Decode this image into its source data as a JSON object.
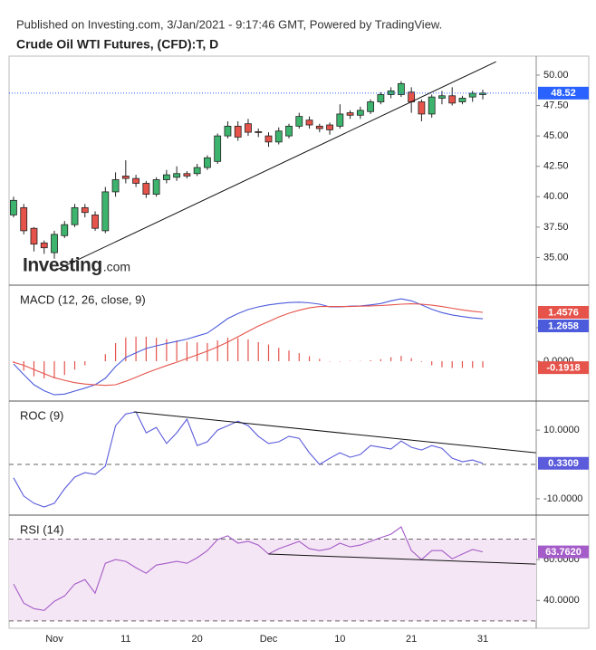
{
  "header": {
    "published": "Published on Investing.com, 3/Jan/2021 - 9:17:46 GMT, Powered by TradingView.",
    "watermark": "Investing",
    "watermark_suffix": ".com"
  },
  "chart_data": [
    {
      "type": "candlestick",
      "title": "Crude Oil WTI Futures, (CFD):T, D",
      "categories": [
        null,
        null,
        null,
        null,
        "Nov",
        null,
        null,
        null,
        null,
        null,
        null,
        "11",
        null,
        null,
        null,
        null,
        null,
        null,
        "20",
        null,
        null,
        null,
        null,
        null,
        null,
        "Dec",
        null,
        null,
        null,
        null,
        null,
        null,
        "10",
        null,
        null,
        null,
        null,
        null,
        null,
        "21",
        null,
        null,
        null,
        null,
        null,
        null,
        "31"
      ],
      "open": [
        38.5,
        39.1,
        37.4,
        36.2,
        35.4,
        36.8,
        37.7,
        39.1,
        38.5,
        37.2,
        40.4,
        41.7,
        41.5,
        41.1,
        40.2,
        41.4,
        41.6,
        41.9,
        41.9,
        42.4,
        42.9,
        45.0,
        45.8,
        46.0,
        45.35,
        45.0,
        44.5,
        45.0,
        45.8,
        46.3,
        45.8,
        45.9,
        45.8,
        46.9,
        46.7,
        47.0,
        47.8,
        48.4,
        48.4,
        48.6,
        47.8,
        46.8,
        48.1,
        48.3,
        47.8,
        48.2,
        48.4
      ],
      "high": [
        40.0,
        39.4,
        37.5,
        36.4,
        37.2,
        38.0,
        39.4,
        39.4,
        38.8,
        40.8,
        42.0,
        43.0,
        41.8,
        41.3,
        41.6,
        42.2,
        42.5,
        42.1,
        42.7,
        43.4,
        45.2,
        46.2,
        46.2,
        46.4,
        45.6,
        45.3,
        45.7,
        46.0,
        46.9,
        46.6,
        46.0,
        46.1,
        47.6,
        47.1,
        47.4,
        48.0,
        48.6,
        49.0,
        49.5,
        49.0,
        48.0,
        48.4,
        48.7,
        49.0,
        48.3,
        48.7,
        48.8
      ],
      "low": [
        38.3,
        36.9,
        35.5,
        35.3,
        34.9,
        36.6,
        37.5,
        38.3,
        37.2,
        37.0,
        40.0,
        41.1,
        40.8,
        39.9,
        40.0,
        41.1,
        41.3,
        41.5,
        41.7,
        42.2,
        42.7,
        44.8,
        44.6,
        45.0,
        44.9,
        44.1,
        44.3,
        44.8,
        45.6,
        45.6,
        45.3,
        45.1,
        45.6,
        46.4,
        46.4,
        46.8,
        47.6,
        48.1,
        48.2,
        46.9,
        46.2,
        46.5,
        47.6,
        47.5,
        47.6,
        47.8,
        48.0
      ],
      "close": [
        39.7,
        37.2,
        36.1,
        35.8,
        36.9,
        37.7,
        39.1,
        38.7,
        37.4,
        40.4,
        41.4,
        41.5,
        41.1,
        40.2,
        41.4,
        41.8,
        41.9,
        41.7,
        42.4,
        43.2,
        45.0,
        45.8,
        44.9,
        45.3,
        45.3,
        44.5,
        45.4,
        45.8,
        46.6,
        45.9,
        45.6,
        45.5,
        46.8,
        46.7,
        47.1,
        47.8,
        48.4,
        48.7,
        49.3,
        47.8,
        46.8,
        48.2,
        48.3,
        47.7,
        48.1,
        48.5,
        48.52
      ],
      "up_color": "#3db46d",
      "down_color": "#e5534b",
      "last_label": "48.52",
      "last_color": "#2962ff",
      "xlim": [
        -0.44,
        51.24
      ],
      "ylim": [
        32.8,
        51.56
      ],
      "yticks": [
        {
          "value": 50,
          "label": "50.00"
        },
        {
          "value": 47.5,
          "label": "47.50"
        },
        {
          "value": 45,
          "label": "45.00"
        },
        {
          "value": 42.5,
          "label": "42.50"
        },
        {
          "value": 40,
          "label": "40.00"
        },
        {
          "value": 37.5,
          "label": "37.50"
        },
        {
          "value": 35,
          "label": "35.00"
        }
      ],
      "trendlines": [
        {
          "x": [
            4,
            47.3
          ],
          "y": [
            33.9,
            51.1
          ],
          "color": "#111"
        }
      ]
    },
    {
      "type": "line",
      "title": "MACD (12, 26, close, 9)",
      "ylim": [
        -1.16,
        2.24
      ],
      "yticks": [
        {
          "value": 1,
          "label": "1.0000"
        },
        {
          "value": 0,
          "label": "0.0000"
        }
      ],
      "series": [
        {
          "style": "histogram",
          "color": "#e5534b",
          "last_label": "-0.1918",
          "values": [
            -0.05,
            -0.28,
            -0.45,
            -0.51,
            -0.51,
            -0.41,
            -0.25,
            -0.12,
            0.0,
            0.21,
            0.54,
            0.71,
            0.73,
            0.73,
            0.7,
            0.66,
            0.62,
            0.58,
            0.56,
            0.54,
            0.62,
            0.7,
            0.69,
            0.65,
            0.57,
            0.5,
            0.4,
            0.32,
            0.24,
            0.15,
            0.07,
            -0.01,
            -0.01,
            0.01,
            0.01,
            0.03,
            0.06,
            0.12,
            0.16,
            0.09,
            -0.02,
            -0.12,
            -0.18,
            -0.2,
            -0.2,
            -0.2,
            -0.1918
          ]
        },
        {
          "style": "line",
          "color": "#4c5bdc",
          "last_label": "1.2658",
          "values": [
            -0.08,
            -0.4,
            -0.7,
            -0.88,
            -1.0,
            -0.98,
            -0.89,
            -0.8,
            -0.7,
            -0.51,
            -0.16,
            0.11,
            0.25,
            0.38,
            0.46,
            0.53,
            0.59,
            0.66,
            0.75,
            0.84,
            1.05,
            1.27,
            1.42,
            1.54,
            1.62,
            1.68,
            1.72,
            1.75,
            1.76,
            1.74,
            1.7,
            1.62,
            1.62,
            1.64,
            1.65,
            1.68,
            1.72,
            1.8,
            1.86,
            1.8,
            1.68,
            1.55,
            1.45,
            1.38,
            1.33,
            1.29,
            1.2658
          ]
        },
        {
          "style": "line",
          "color": "#e5534b",
          "last_label": "1.4576",
          "values": [
            -0.03,
            -0.12,
            -0.25,
            -0.37,
            -0.49,
            -0.57,
            -0.64,
            -0.68,
            -0.7,
            -0.72,
            -0.7,
            -0.6,
            -0.48,
            -0.35,
            -0.24,
            -0.13,
            -0.03,
            0.08,
            0.19,
            0.3,
            0.43,
            0.57,
            0.73,
            0.89,
            1.05,
            1.18,
            1.32,
            1.43,
            1.52,
            1.59,
            1.63,
            1.63,
            1.63,
            1.63,
            1.64,
            1.65,
            1.66,
            1.68,
            1.7,
            1.71,
            1.7,
            1.67,
            1.63,
            1.58,
            1.53,
            1.49,
            1.4576
          ]
        }
      ]
    },
    {
      "type": "line",
      "title": "ROC (9)",
      "ylim": [
        -14.5,
        18.2
      ],
      "yticks": [
        {
          "value": 10,
          "label": "10.0000"
        },
        {
          "value": -10,
          "label": "-10.0000"
        }
      ],
      "levels": [
        0
      ],
      "series": [
        {
          "style": "line",
          "color": "#5b5bdc",
          "last_label": "0.3309",
          "values": [
            -3.9,
            -9.2,
            -11.3,
            -12.4,
            -11.3,
            -7.1,
            -3.7,
            -2.4,
            -2.9,
            -0.5,
            11.3,
            14.7,
            15.3,
            9.2,
            10.8,
            6.1,
            9.2,
            13.2,
            5.5,
            6.6,
            10.0,
            11.3,
            12.6,
            11.3,
            8.2,
            6.1,
            6.6,
            8.2,
            7.6,
            3.4,
            0.0,
            1.8,
            3.4,
            2.1,
            2.9,
            5.5,
            5.0,
            4.5,
            6.8,
            5.0,
            4.2,
            5.5,
            4.7,
            1.8,
            0.8,
            1.3,
            0.3309
          ]
        }
      ],
      "trendlines": [
        {
          "x": [
            11.8,
            51.2
          ],
          "y": [
            15.3,
            3.4
          ],
          "color": "#111"
        }
      ]
    },
    {
      "type": "line",
      "title": "RSI (14)",
      "ylim": [
        26.4,
        81.3
      ],
      "yticks": [
        {
          "value": 60,
          "label": "60.0000"
        },
        {
          "value": 40,
          "label": "40.0000"
        }
      ],
      "levels": [
        70,
        30
      ],
      "band_fill": "#f5e6f5",
      "series": [
        {
          "style": "line",
          "color": "#a45cc8",
          "last_label": "63.7620",
          "values": [
            48.0,
            38.7,
            36.0,
            35.1,
            39.6,
            42.2,
            48.0,
            50.2,
            43.6,
            58.2,
            60.0,
            59.1,
            56.0,
            53.3,
            57.3,
            58.2,
            59.1,
            58.2,
            60.9,
            64.4,
            69.8,
            71.6,
            68.0,
            68.9,
            67.1,
            62.7,
            65.3,
            67.1,
            68.9,
            65.3,
            64.4,
            65.3,
            68.0,
            66.2,
            67.1,
            68.9,
            70.7,
            72.4,
            76.0,
            64.4,
            60.0,
            64.4,
            64.4,
            60.4,
            62.7,
            64.9,
            63.762
          ]
        }
      ],
      "trendlines": [
        {
          "x": [
            25,
            51.2
          ],
          "y": [
            62.7,
            57.8
          ],
          "color": "#111"
        }
      ]
    }
  ]
}
